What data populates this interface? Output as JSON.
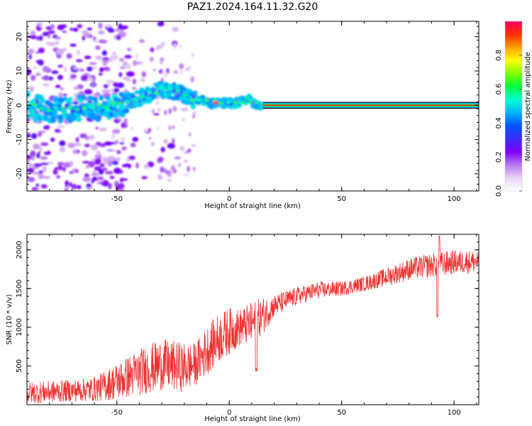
{
  "figure": {
    "title": "PAZ1.2024.164.11.32.G20"
  },
  "chart_data": [
    {
      "type": "heatmap",
      "xlabel": "Height of straight line (km)",
      "ylabel": "Frequency (Hz)",
      "xlim": [
        -90,
        111
      ],
      "ylim": [
        -25,
        24.5
      ],
      "xticks": [
        -50,
        0,
        50,
        100
      ],
      "yticks": [
        -20,
        -10,
        0,
        10,
        20
      ],
      "colorbar": {
        "label": "Normalized spectral amplitude",
        "range": [
          0,
          1
        ],
        "ticks": [
          "0.0",
          "0.2",
          "0.4",
          "0.6",
          "0.8"
        ],
        "colors": [
          "#ffffff",
          "#e9d4f7",
          "#b779ef",
          "#7f00ff",
          "#3c2cff",
          "#0055ff",
          "#00b4ff",
          "#00ffd0",
          "#00ff40",
          "#7fff00",
          "#ffff00",
          "#ffa000",
          "#ff3000",
          "#ff0060"
        ]
      },
      "ridge": {
        "description_points_x": [
          -90,
          -80,
          -70,
          -60,
          -50,
          -45,
          -40,
          -35,
          -30,
          -25,
          -20,
          -15,
          -10,
          -5,
          0,
          5,
          8,
          12,
          15,
          111
        ],
        "description_points_y": [
          0,
          -1.5,
          -1,
          -0.5,
          0,
          0.5,
          2,
          3.5,
          5,
          4,
          3,
          1.5,
          1,
          0.5,
          0.5,
          1,
          2,
          0.5,
          0,
          0
        ],
        "steady_start_km": 15,
        "steady_frequency_hz": 0
      },
      "noise_region_x": [
        -90,
        -45
      ],
      "noise_region_y": [
        -25,
        24
      ]
    },
    {
      "type": "line",
      "xlabel": "Height of straight line (km)",
      "ylabel": "SNR (10 * v/v)",
      "xlim": [
        -90,
        111
      ],
      "ylim": [
        0,
        2200
      ],
      "xticks": [
        -50,
        0,
        50,
        100
      ],
      "yticks": [
        500,
        1000,
        1500,
        2000
      ],
      "series": [
        {
          "color": "#ee3030",
          "trend_x": [
            -90,
            -70,
            -60,
            -50,
            -40,
            -30,
            -20,
            -15,
            -10,
            -5,
            0,
            5,
            10,
            15,
            20,
            30,
            40,
            50,
            60,
            70,
            80,
            90,
            100,
            111
          ],
          "trend_y": [
            150,
            180,
            200,
            300,
            420,
            520,
            480,
            520,
            700,
            850,
            950,
            1000,
            1050,
            1150,
            1280,
            1400,
            1480,
            1500,
            1560,
            1650,
            1750,
            1800,
            1840,
            1850
          ],
          "noise_amplitude": [
            180,
            180,
            200,
            300,
            380,
            420,
            400,
            350,
            400,
            400,
            380,
            300,
            350,
            300,
            180,
            150,
            140,
            120,
            120,
            150,
            180,
            200,
            200,
            180
          ]
        }
      ]
    }
  ]
}
